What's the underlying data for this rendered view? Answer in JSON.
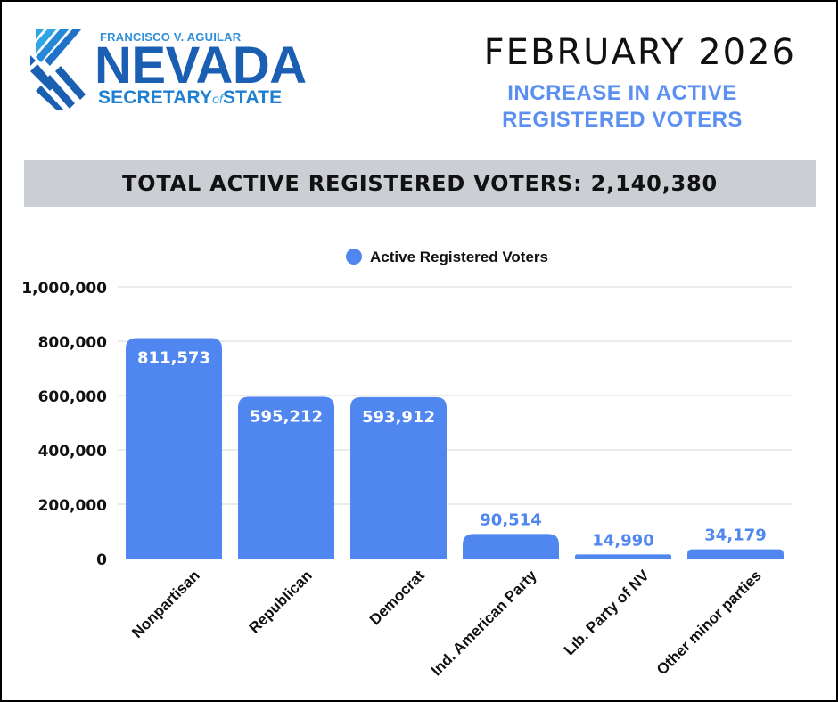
{
  "header": {
    "logo_top": "FRANCISCO V. AGUILAR",
    "logo_main": "NEVADA",
    "logo_sub_a": "SECRETARY",
    "logo_sub_of": "of",
    "logo_sub_b": "STATE",
    "month": "FEBRUARY 2026",
    "subtitle_line1": "INCREASE IN ACTIVE",
    "subtitle_line2": "REGISTERED VOTERS",
    "banner": "TOTAL ACTIVE REGISTERED VOTERS: 2,140,380"
  },
  "colors": {
    "bar": "#4f86f0",
    "grid": "#d9d9d9",
    "logo_dark": "#1b5fb3",
    "logo_light": "#2fa5e6"
  },
  "chart_data": {
    "type": "bar",
    "categories": [
      "Nonpartisan",
      "Republican",
      "Democrat",
      "Ind. American Party",
      "Lib. Party of NV",
      "Other minor parties"
    ],
    "series": [
      {
        "name": "Active Registered Voters",
        "values": [
          811573,
          595212,
          593912,
          90514,
          14990,
          34179
        ]
      }
    ],
    "value_labels": [
      "811,573",
      "595,212",
      "593,912",
      "90,514",
      "14,990",
      "34,179"
    ],
    "yticks": [
      0,
      200000,
      400000,
      600000,
      800000,
      1000000
    ],
    "ytick_labels": [
      "0",
      "200,000",
      "400,000",
      "600,000",
      "800,000",
      "1,000,000"
    ],
    "ylim": [
      0,
      1000000
    ],
    "legend_position": "top",
    "grid": true
  }
}
